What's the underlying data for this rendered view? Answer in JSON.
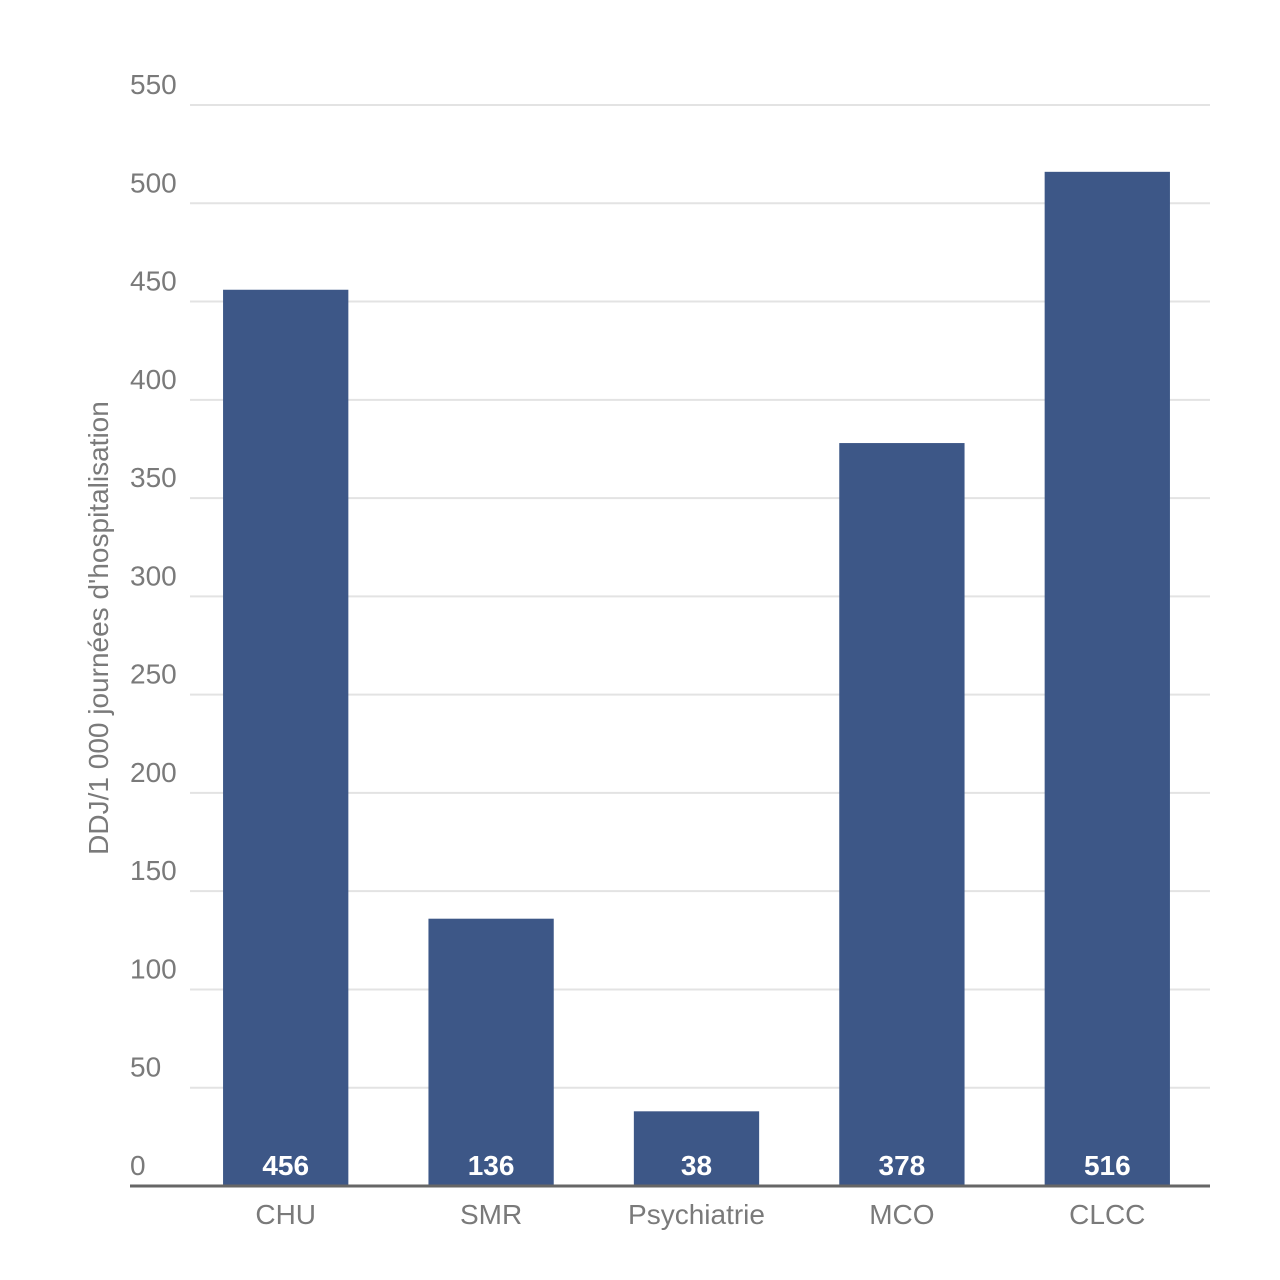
{
  "chart_data": {
    "type": "bar",
    "y_label": "DDJ/1 000 journées d'hospitalisation",
    "categories": [
      "CHU",
      "SMR",
      "Psychiatrie",
      "MCO",
      "CLCC"
    ],
    "values": [
      456,
      136,
      38,
      378,
      516
    ],
    "color": "#3d5787",
    "ylim": [
      0,
      550
    ],
    "yticks": [
      0,
      50,
      100,
      150,
      200,
      250,
      300,
      350,
      400,
      450,
      500,
      550
    ],
    "grid": true
  }
}
